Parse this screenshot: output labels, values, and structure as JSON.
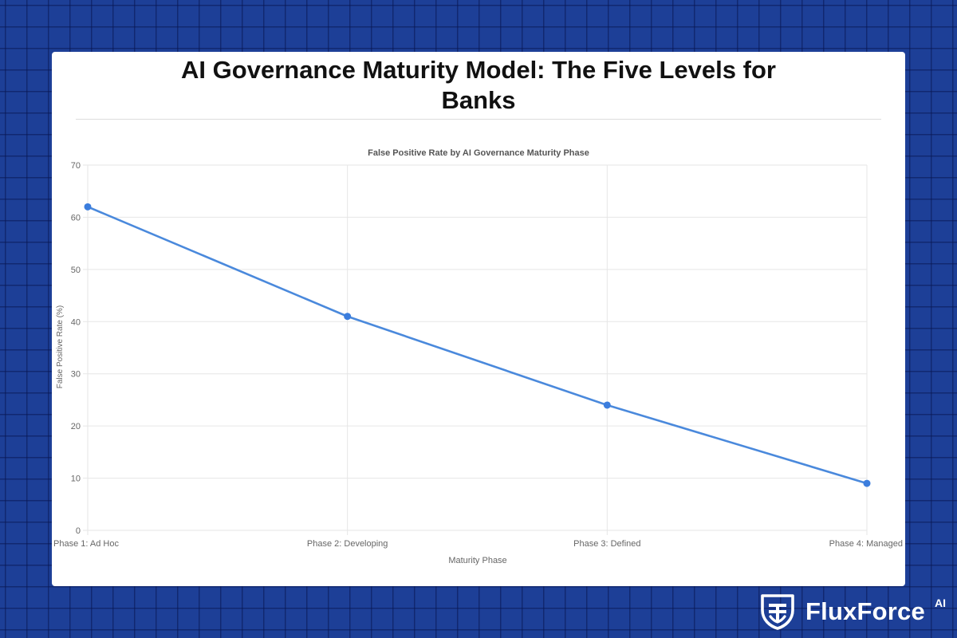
{
  "page": {
    "title_lines": [
      "AI Governance Maturity Model: The Five Levels for",
      "Banks"
    ]
  },
  "brand": {
    "name": "FluxForce",
    "superscript": "AI",
    "logo_icon": "shield-icon"
  },
  "colors": {
    "background": "#1d3f97",
    "card": "#ffffff",
    "series_line": "#4a89dc",
    "series_point": "#3b7ddd",
    "grid": "#e6e6e6"
  },
  "chart_data": {
    "type": "line",
    "title": "False Positive Rate by AI Governance Maturity Phase",
    "xlabel": "Maturity Phase",
    "ylabel": "False Positive Rate (%)",
    "categories": [
      "Phase 1: Ad Hoc",
      "Phase 2: Developing",
      "Phase 3: Defined",
      "Phase 4: Managed"
    ],
    "series": [
      {
        "values": [
          62,
          41,
          24,
          9
        ]
      }
    ],
    "ylim": [
      0,
      70
    ],
    "yticks": [
      0,
      10,
      20,
      30,
      40,
      50,
      60,
      70
    ],
    "grid": true,
    "legend": "none"
  }
}
